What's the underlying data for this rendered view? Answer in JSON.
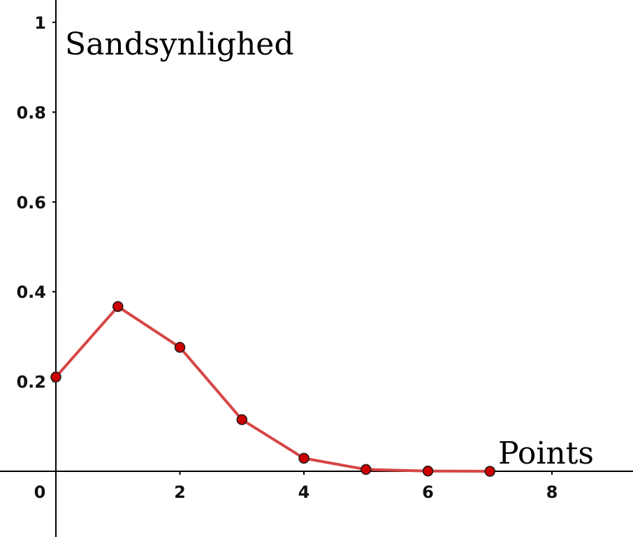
{
  "chart_data": {
    "type": "line",
    "ylabel": "Sandsynlighed",
    "xlabel": "Points",
    "x_ticks": [
      0,
      2,
      4,
      6,
      8
    ],
    "y_ticks": [
      0.2,
      0.4,
      0.6,
      0.8,
      1
    ],
    "x_tick_labels": [
      "0",
      "2",
      "4",
      "6",
      "8"
    ],
    "y_tick_labels": [
      "0.2",
      "0.4",
      "0.6",
      "0.8",
      "1"
    ],
    "xlim": [
      0,
      9.3
    ],
    "ylim": [
      -0.145,
      1.05
    ],
    "grid": false,
    "series": [
      {
        "x": [
          0,
          1,
          2,
          3,
          4,
          5,
          6,
          7
        ],
        "values": [
          0.21,
          0.367,
          0.276,
          0.115,
          0.029,
          0.004,
          0.0005,
          0.0
        ]
      }
    ],
    "colors": {
      "line": "#d64545",
      "marker_fill": "#cc0000",
      "marker_edge": "#1a1a1a",
      "axis": "#000000"
    }
  }
}
